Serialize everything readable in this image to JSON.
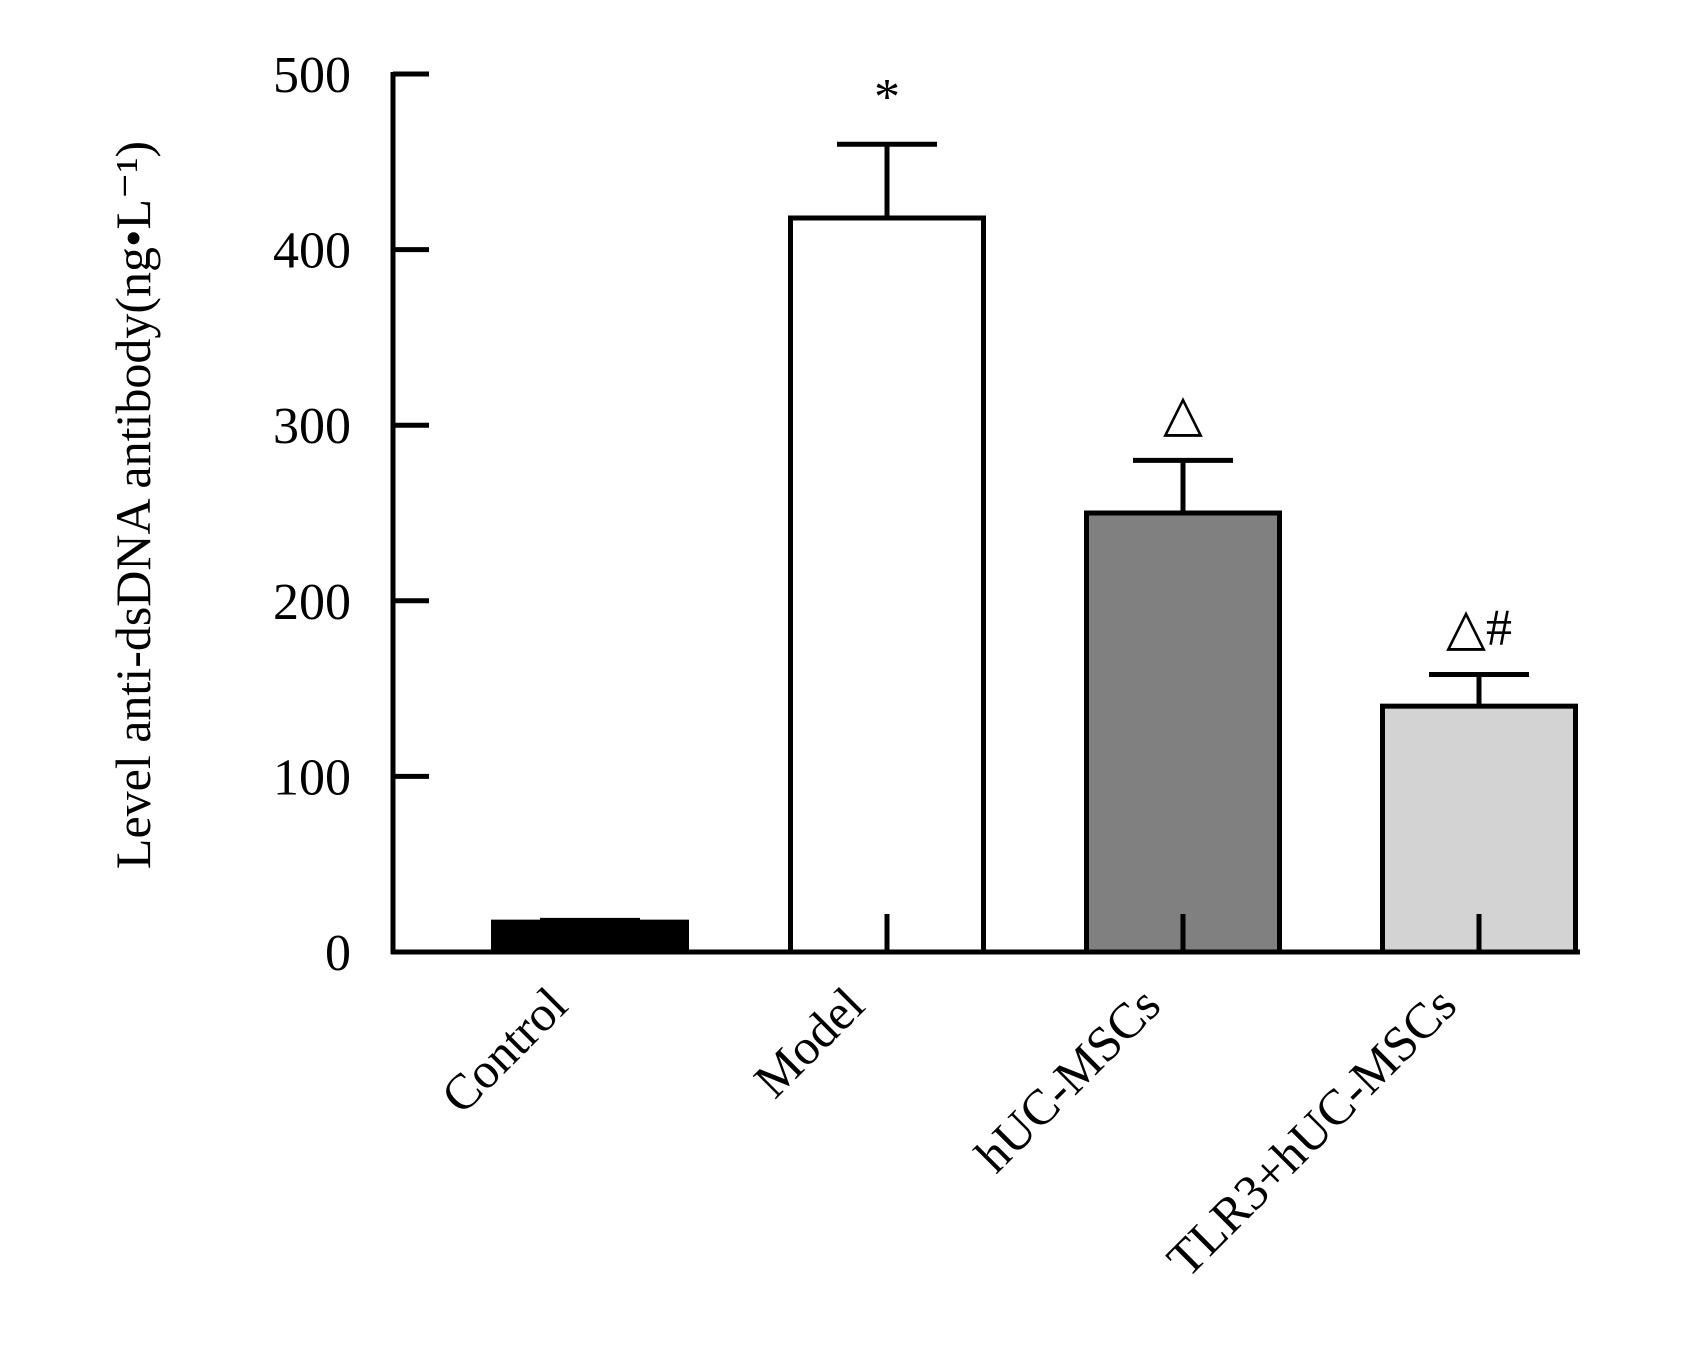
{
  "chart_data": {
    "type": "bar",
    "title": "",
    "xlabel": "",
    "ylabel": "Level anti-dsDNA antibody(ng•L⁻¹)",
    "ylim": [
      0,
      500
    ],
    "yticks": [
      0,
      100,
      200,
      300,
      400,
      500
    ],
    "grid": false,
    "categories": [
      "Control",
      "Model",
      "hUC-MSCs",
      "TLR3+hUC-MSCs"
    ],
    "values": [
      17,
      418,
      250,
      140
    ],
    "errors": [
      1,
      42,
      30,
      18
    ],
    "annotations": [
      "",
      "*",
      "△",
      "△#"
    ],
    "colors": [
      "#000000",
      "#ffffff",
      "#808080",
      "#d3d3d3"
    ]
  }
}
